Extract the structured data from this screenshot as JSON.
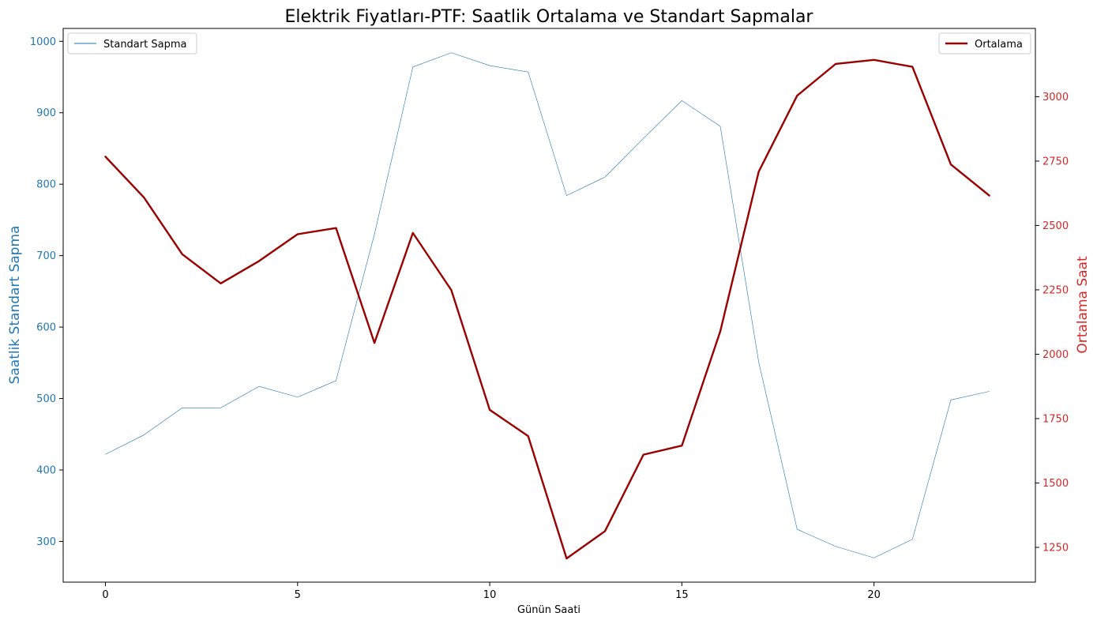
{
  "chart_data": {
    "type": "line",
    "title": "Elektrik Fiyatları-PTF: Saatlik Ortalama ve Standart Sapmalar",
    "xlabel": "Günün Saati",
    "ylabel_left": "Saatlik Standart Sapma",
    "ylabel_right": "Ortalama Saat",
    "x": [
      0,
      1,
      2,
      3,
      4,
      5,
      6,
      7,
      8,
      9,
      10,
      11,
      12,
      13,
      14,
      15,
      16,
      17,
      18,
      19,
      20,
      21,
      22,
      23
    ],
    "xlim": [
      -1.1,
      24.2
    ],
    "xticks": [
      0,
      5,
      10,
      15,
      20
    ],
    "ylim_left": [
      243,
      1018
    ],
    "yticks_left": [
      300,
      400,
      500,
      600,
      700,
      800,
      900,
      1000
    ],
    "ylim_right": [
      1115,
      3265
    ],
    "yticks_right": [
      1250,
      1500,
      1750,
      2000,
      2250,
      2500,
      2750,
      3000
    ],
    "colors": {
      "left_axis": "#1f77b4",
      "right_axis": "#d62728"
    },
    "series": [
      {
        "name": "Standart Sapma",
        "axis": "left",
        "color": "#1f77b4",
        "linewidth": 0.6,
        "legend_position": "upper-left",
        "values": [
          422,
          449,
          487,
          487,
          517,
          502,
          525,
          730,
          964,
          984,
          966,
          957,
          784,
          810,
          864,
          917,
          881,
          551,
          317,
          293,
          277,
          303,
          498,
          510
        ]
      },
      {
        "name": "Ortalama",
        "axis": "right",
        "color": "#990000",
        "linewidth": 2.4,
        "legend_position": "upper-right",
        "values": [
          2767,
          2609,
          2388,
          2275,
          2362,
          2466,
          2490,
          2044,
          2471,
          2249,
          1784,
          1682,
          1207,
          1313,
          1610,
          1645,
          2089,
          2709,
          3004,
          3127,
          3143,
          3116,
          2737,
          2616
        ]
      }
    ]
  }
}
